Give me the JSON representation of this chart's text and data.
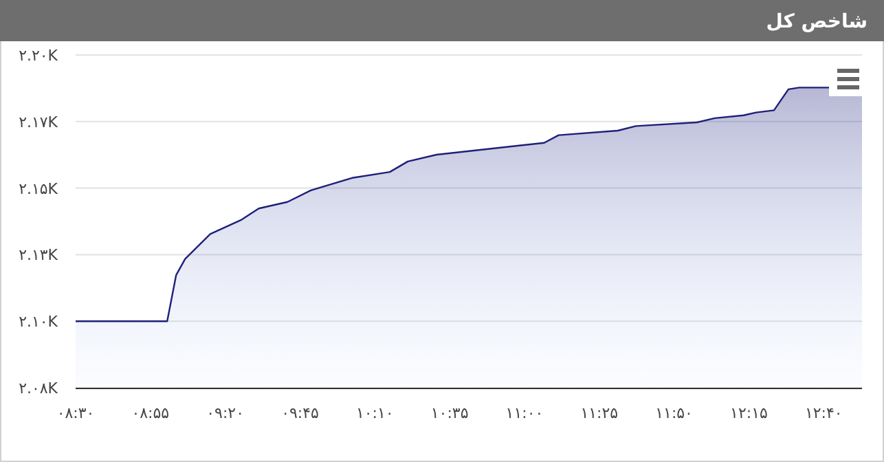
{
  "chart_data": {
    "type": "area",
    "title": "شاخص کل",
    "x": [
      8.5,
      9.0,
      9.01,
      9.06,
      9.11,
      9.25,
      9.42,
      9.52,
      9.68,
      9.81,
      10.04,
      10.25,
      10.35,
      10.51,
      11.11,
      11.19,
      11.52,
      11.62,
      11.96,
      12.06,
      12.22,
      12.29,
      12.39,
      12.47,
      12.53,
      12.71,
      12.88
    ],
    "series": [
      {
        "color": "#1f1f7a",
        "values": [
          2103.5,
          2103.5,
          2103.5,
          2119.8,
          2125.5,
          2134.3,
          2139.2,
          2143.3,
          2145.6,
          2149.7,
          2154.1,
          2156.2,
          2159.9,
          2162.3,
          2166.5,
          2169.2,
          2170.8,
          2172.4,
          2173.7,
          2175.2,
          2176.2,
          2177.2,
          2178,
          2185.4,
          2186,
          2186,
          2186
        ]
      }
    ],
    "xlim": [
      8.5,
      12.88
    ],
    "ylim": [
      2080,
      2197.5
    ],
    "xticks": [
      {
        "value": 8.5,
        "label": "۰۸:۳۰"
      },
      {
        "value": 8.9167,
        "label": "۰۸:۵۵"
      },
      {
        "value": 9.3333,
        "label": "۰۹:۲۰"
      },
      {
        "value": 9.75,
        "label": "۰۹:۴۵"
      },
      {
        "value": 10.1667,
        "label": "۱۰:۱۰"
      },
      {
        "value": 10.5833,
        "label": "۱۰:۳۵"
      },
      {
        "value": 11,
        "label": "۱۱:۰۰"
      },
      {
        "value": 11.4167,
        "label": "۱۱:۲۵"
      },
      {
        "value": 11.8333,
        "label": "۱۱:۵۰"
      },
      {
        "value": 12.25,
        "label": "۱۲:۱۵"
      },
      {
        "value": 12.6667,
        "label": "۱۲:۴۰"
      }
    ],
    "yticks": [
      {
        "value": 2080,
        "label": "۲.۰۸K"
      },
      {
        "value": 2103.5,
        "label": "۲.۱۰K"
      },
      {
        "value": 2127,
        "label": "۲.۱۳K"
      },
      {
        "value": 2150.5,
        "label": "۲.۱۵K"
      },
      {
        "value": 2174,
        "label": "۲.۱۷K"
      },
      {
        "value": 2197.5,
        "label": "۲.۲۰K"
      }
    ],
    "grid": "y"
  }
}
